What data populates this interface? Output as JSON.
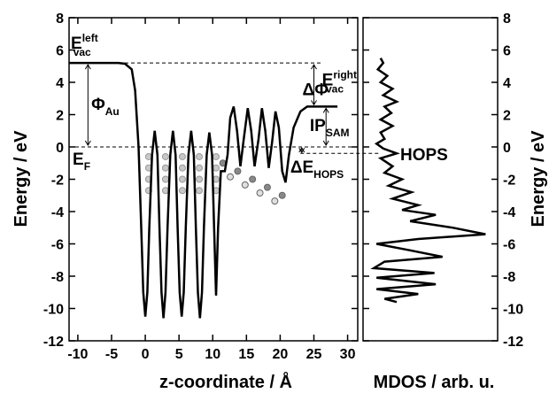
{
  "chart_data": [
    {
      "type": "line",
      "x_label": "z-coordinate / Å",
      "y_label": "Energy / eV",
      "xlim": [
        -11.3,
        31.5
      ],
      "xticks": [
        -10,
        -5,
        0,
        5,
        10,
        15,
        20,
        25,
        30
      ],
      "ylim": [
        -12,
        8
      ],
      "yticks": [
        -12,
        -10,
        -8,
        -6,
        -4,
        -2,
        0,
        2,
        4,
        6,
        8
      ],
      "series": [
        {
          "color": "#000000",
          "x": [
            -11.3,
            -4,
            -3,
            -2,
            -1.5,
            -1,
            -0.6,
            -0.3,
            0,
            0.3,
            0.6,
            1,
            1.4,
            1.8,
            2.1,
            2.4,
            2.7,
            3.0,
            3.3,
            3.7,
            4.1,
            4.5,
            4.8,
            5.1,
            5.4,
            5.7,
            6.0,
            6.4,
            6.8,
            7.2,
            7.5,
            7.8,
            8.1,
            8.4,
            8.7,
            9.1,
            9.5,
            9.9,
            10.2,
            10.5,
            10.8,
            11.2,
            11.8,
            12.2,
            12.6,
            13.1,
            13.6,
            14.1,
            14.6,
            15.2,
            15.7,
            16.2,
            16.8,
            17.3,
            17.8,
            18.3,
            18.8,
            19.3,
            19.8,
            20.3,
            20.8,
            21.3,
            22,
            23,
            24,
            25,
            28.5
          ],
          "values": [
            5.2,
            5.2,
            5.15,
            4.8,
            3.5,
            0,
            -5,
            -9,
            -10.5,
            -9,
            -5,
            -0.5,
            1.0,
            -0.5,
            -5,
            -9,
            -10.6,
            -9,
            -5,
            -0.5,
            1.0,
            -0.5,
            -5,
            -9,
            -10.5,
            -9,
            -5,
            -0.5,
            1.0,
            -0.5,
            -5,
            -9,
            -10.6,
            -9,
            -5,
            -0.5,
            0.9,
            -0.5,
            -5,
            -9.2,
            -5,
            -1.5,
            -1.5,
            -0.5,
            1.8,
            2.5,
            1.0,
            -1.2,
            0.5,
            2.4,
            1.0,
            -1.2,
            0.5,
            2.4,
            1.0,
            -1.3,
            0.3,
            2.2,
            1.2,
            -1.5,
            -2.2,
            -0.5,
            1.2,
            2.2,
            2.5,
            2.5,
            2.5
          ]
        }
      ],
      "reference_lines": [
        5.2,
        0,
        -0.4
      ],
      "annotations": [
        {
          "text": "E",
          "sup": "left",
          "sub": "vac"
        },
        {
          "text": "Φ",
          "sub": "Au"
        },
        {
          "text": "E",
          "sub": "F"
        },
        {
          "text": "ΔΦ"
        },
        {
          "text": "E",
          "sup": "right",
          "sub": "vac"
        },
        {
          "text": "IP",
          "sub": "SAM"
        },
        {
          "text": "ΔE",
          "sub": "HOPS"
        }
      ]
    },
    {
      "type": "mdos",
      "x_label": "MDOS / arb. u.",
      "y_label": "Energy / eV",
      "xlim": [
        0,
        1
      ],
      "ylim": [
        -12,
        8
      ],
      "yticks": [
        -12,
        -10,
        -8,
        -6,
        -4,
        -2,
        0,
        2,
        4,
        6,
        8
      ],
      "annotation": "HOPS",
      "series": [
        {
          "color": "#000000",
          "x": [
            0.13,
            0.15,
            0.11,
            0.18,
            0.13,
            0.22,
            0.15,
            0.25,
            0.16,
            0.21,
            0.13,
            0.22,
            0.13,
            0.16,
            0.1,
            0.15,
            0.25,
            0.13,
            0.22,
            0.16,
            0.29,
            0.19,
            0.36,
            0.22,
            0.41,
            0.29,
            0.54,
            0.35,
            0.67,
            0.91,
            0.41,
            0.1,
            0.35,
            0.59,
            0.16,
            0.08,
            0.53,
            0.1,
            0.54,
            0.1,
            0.41,
            0.16,
            0.25
          ],
          "values": [
            5.5,
            5.2,
            4.8,
            4.4,
            4.0,
            3.6,
            3.2,
            2.8,
            2.5,
            2.1,
            1.7,
            1.3,
            0.9,
            0.5,
            0.2,
            -0.1,
            -0.4,
            -0.7,
            -1.2,
            -1.6,
            -2.0,
            -2.4,
            -2.8,
            -3.2,
            -3.6,
            -3.9,
            -4.2,
            -4.6,
            -5.0,
            -5.4,
            -5.7,
            -6.0,
            -6.4,
            -6.8,
            -7.1,
            -7.5,
            -7.8,
            -8.1,
            -8.5,
            -8.8,
            -9.1,
            -9.4,
            -9.6
          ]
        }
      ]
    }
  ]
}
